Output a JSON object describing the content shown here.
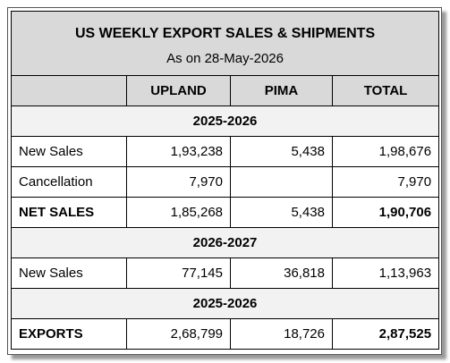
{
  "header": {
    "title": "US WEEKLY EXPORT SALES & SHIPMENTS",
    "subtitle": "As on 28-May-2026"
  },
  "table": {
    "columns": [
      "UPLAND",
      "PIMA",
      "TOTAL"
    ],
    "sections": [
      {
        "label": "2025-2026",
        "rows": [
          {
            "label": "New Sales",
            "cells": [
              "1,93,238",
              "5,438",
              "1,98,676"
            ]
          },
          {
            "label": "Cancellation",
            "cells": [
              "7,970",
              null,
              "7,970"
            ]
          },
          {
            "label": "NET SALES",
            "cells": [
              "1,85,268",
              "5,438",
              "1,90,706"
            ],
            "emphasis": true
          }
        ]
      },
      {
        "label": "2026-2027",
        "rows": [
          {
            "label": "New Sales",
            "cells": [
              "77,145",
              "36,818",
              "1,13,963"
            ]
          }
        ]
      },
      {
        "label": "2025-2026",
        "rows": [
          {
            "label": "EXPORTS",
            "cells": [
              "2,68,799",
              "18,726",
              "2,87,525"
            ],
            "emphasis": true
          }
        ]
      }
    ]
  }
}
